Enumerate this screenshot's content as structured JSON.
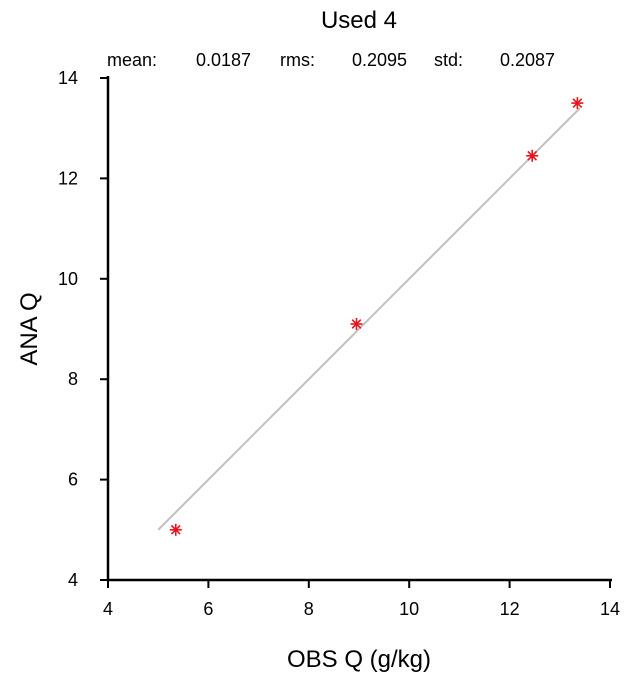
{
  "chart_data": {
    "type": "scatter",
    "title": "Used  4",
    "stats": [
      {
        "label": "mean:",
        "value": "0.0187"
      },
      {
        "label": "rms:",
        "value": "0.2095"
      },
      {
        "label": "std:",
        "value": "0.2087"
      }
    ],
    "xlabel": "OBS Q  (g/kg)",
    "ylabel": "ANA Q",
    "xlim": [
      4,
      14
    ],
    "ylim": [
      4,
      14
    ],
    "xticks": [
      "4",
      "6",
      "8",
      "10",
      "12",
      "14"
    ],
    "yticks": [
      "4",
      "6",
      "8",
      "10",
      "12",
      "14"
    ],
    "reference_line": {
      "from": [
        5,
        5
      ],
      "to": [
        13.4,
        13.4
      ],
      "color": "#bfbfbf"
    },
    "series": [
      {
        "marker": "asterisk",
        "color": "#e8141c",
        "points": [
          {
            "x": 5.35,
            "y": 5.0
          },
          {
            "x": 8.95,
            "y": 9.1
          },
          {
            "x": 12.45,
            "y": 12.45
          },
          {
            "x": 13.35,
            "y": 13.5
          }
        ]
      }
    ],
    "grid": false
  }
}
